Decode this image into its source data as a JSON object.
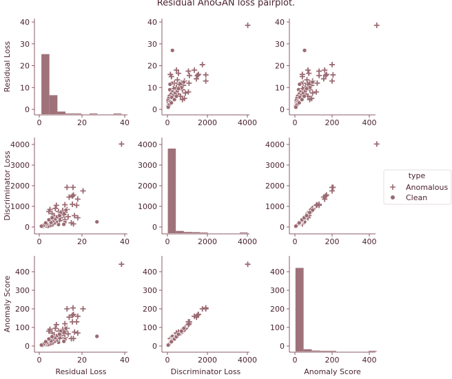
{
  "chart_data": {
    "type": "scatter",
    "title": "Residual AnoGAN loss pairplot.",
    "variables": [
      "Residual Loss",
      "Discriminator Loss",
      "Anomaly Score"
    ],
    "ticks": {
      "Residual Loss": [
        0,
        10,
        20,
        30,
        40
      ],
      "Residual Loss_x": [
        0,
        20,
        40
      ],
      "Discriminator Loss": [
        0,
        1000,
        2000,
        3000,
        4000
      ],
      "Discriminator Loss_x": [
        0,
        2000,
        4000
      ],
      "Anomaly Score": [
        0,
        100,
        200,
        300,
        400
      ],
      "Anomaly Score_x": [
        0,
        200,
        400
      ]
    },
    "ranges": {
      "Residual Loss": [
        -2.5,
        41
      ],
      "Discriminator Loss": [
        -250,
        4250
      ],
      "Anomaly Score": [
        -25,
        465
      ]
    },
    "legend": {
      "title": "type",
      "entries": [
        "Anomalous",
        "Clean"
      ],
      "placement": "right"
    },
    "colors": {
      "marker": "#9a6a72",
      "text": "#4a2230",
      "axis": "#8a5a64"
    },
    "markers": {
      "Anomalous": "plus",
      "Clean": "circle"
    },
    "histograms": {
      "Residual Loss": {
        "edges": [
          1,
          4.75,
          8.5,
          12.25,
          16,
          19.75,
          23.5,
          27.25,
          31,
          34.75,
          38.5
        ],
        "heights": [
          27.5,
          8.7,
          1.2,
          0.3,
          0.1,
          0,
          0.05,
          0,
          0,
          0.05
        ]
      },
      "Discriminator Loss": {
        "edges": [
          20,
          420,
          820,
          1220,
          1620,
          2020,
          2420,
          2820,
          3220,
          3620,
          4020
        ],
        "heights": [
          4100,
          110,
          60,
          50,
          30,
          0,
          0,
          0,
          0,
          20
        ]
      },
      "Anomaly Score": {
        "edges": [
          3,
          46.7,
          90.4,
          134.1,
          177.8,
          221.5,
          265.2,
          308.9,
          352.6,
          396.3,
          440
        ],
        "heights": [
          450,
          12,
          5,
          3,
          2,
          0,
          0,
          0,
          0,
          1
        ]
      }
    },
    "points": [
      [
        38.5,
        4020,
        440,
        "Anomalous"
      ],
      [
        20.5,
        1750,
        200,
        "Anomalous"
      ],
      [
        15.8,
        1920,
        205,
        "Anomalous"
      ],
      [
        13,
        1920,
        200,
        "Anomalous"
      ],
      [
        18,
        1350,
        160,
        "Anomalous"
      ],
      [
        17.5,
        1050,
        130,
        "Anomalous"
      ],
      [
        15.5,
        1500,
        165,
        "Anomalous"
      ],
      [
        16,
        1550,
        170,
        "Anomalous"
      ],
      [
        14,
        1450,
        155,
        "Anomalous"
      ],
      [
        15.5,
        1100,
        130,
        "Anomalous"
      ],
      [
        12,
        1080,
        120,
        "Anomalous"
      ],
      [
        8,
        1050,
        115,
        "Anomalous"
      ],
      [
        18,
        450,
        70,
        "Anomalous"
      ],
      [
        16,
        150,
        40,
        "Anomalous"
      ],
      [
        15,
        200,
        40,
        "Anomalous"
      ],
      [
        16.5,
        550,
        75,
        "Anomalous"
      ],
      [
        13.5,
        500,
        65,
        "Anomalous"
      ],
      [
        12,
        700,
        80,
        "Anomalous"
      ],
      [
        11,
        800,
        90,
        "Anomalous"
      ],
      [
        10.5,
        650,
        75,
        "Anomalous"
      ],
      [
        13,
        850,
        95,
        "Anomalous"
      ],
      [
        9,
        750,
        80,
        "Anomalous"
      ],
      [
        7.5,
        900,
        95,
        "Anomalous"
      ],
      [
        11.5,
        600,
        70,
        "Anomalous"
      ],
      [
        10,
        450,
        55,
        "Anomalous"
      ],
      [
        8,
        400,
        48,
        "Anomalous"
      ],
      [
        6,
        650,
        70,
        "Anomalous"
      ],
      [
        5,
        850,
        90,
        "Anomalous"
      ],
      [
        4.5,
        750,
        80,
        "Anomalous"
      ],
      [
        12,
        350,
        45,
        "Anomalous"
      ],
      [
        9.5,
        300,
        40,
        "Anomalous"
      ],
      [
        7,
        550,
        60,
        "Anomalous"
      ],
      [
        27,
        250,
        52,
        "Clean"
      ],
      [
        1.5,
        20,
        3,
        "Clean"
      ],
      [
        12,
        230,
        35,
        "Clean"
      ],
      [
        11.5,
        130,
        25,
        "Clean"
      ],
      [
        12.5,
        820,
        95,
        "Clean"
      ],
      [
        9,
        120,
        20,
        "Clean"
      ],
      [
        8,
        250,
        30,
        "Clean"
      ],
      [
        7,
        180,
        23,
        "Clean"
      ],
      [
        6,
        90,
        14,
        "Clean"
      ],
      [
        5,
        60,
        10,
        "Clean"
      ],
      [
        4,
        30,
        7,
        "Clean"
      ],
      [
        3,
        50,
        8,
        "Clean"
      ],
      [
        2.5,
        100,
        12,
        "Clean"
      ],
      [
        3.5,
        150,
        18,
        "Clean"
      ],
      [
        6.5,
        300,
        35,
        "Clean"
      ],
      [
        7.5,
        400,
        45,
        "Clean"
      ],
      [
        5.5,
        220,
        27,
        "Clean"
      ],
      [
        4.5,
        350,
        38,
        "Clean"
      ],
      [
        2,
        80,
        10,
        "Clean"
      ],
      [
        1,
        40,
        5,
        "Clean"
      ],
      [
        8.5,
        500,
        57,
        "Clean"
      ],
      [
        10,
        700,
        80,
        "Clean"
      ],
      [
        3,
        200,
        23,
        "Clean"
      ],
      [
        6,
        450,
        50,
        "Clean"
      ],
      [
        9.5,
        550,
        63,
        "Clean"
      ]
    ]
  }
}
